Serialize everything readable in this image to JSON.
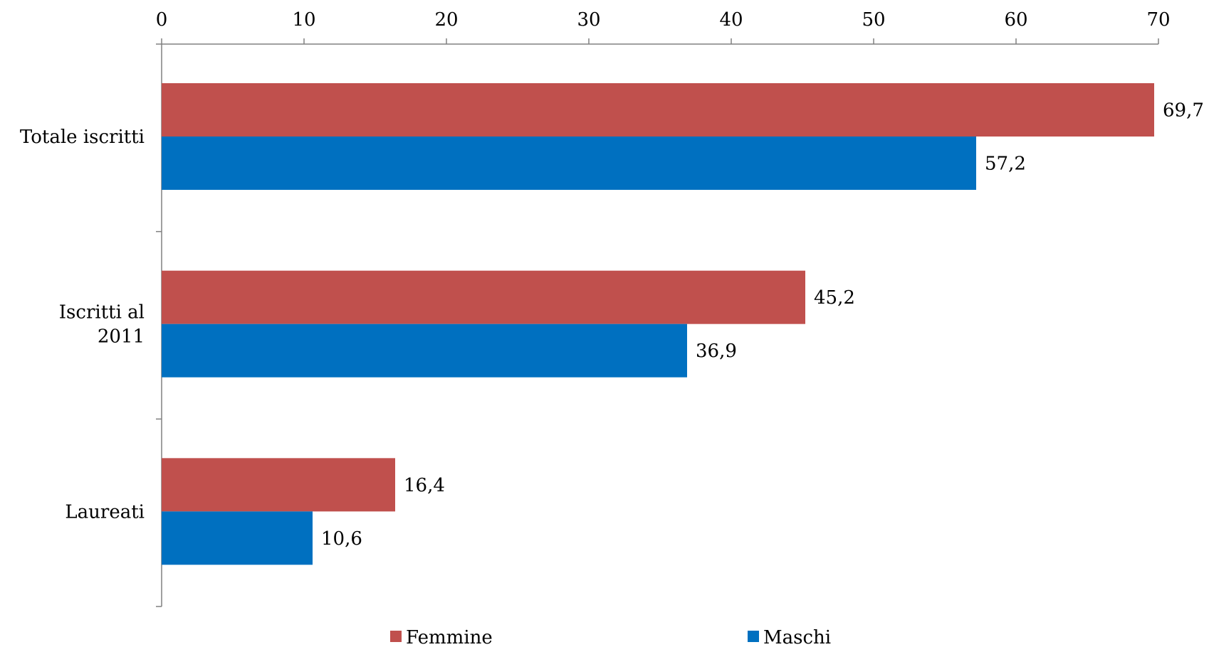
{
  "chart_data": {
    "type": "bar",
    "orientation": "horizontal",
    "categories": [
      [
        "Totale iscritti"
      ],
      [
        "Iscritti al",
        "2011"
      ],
      [
        "Laureati"
      ]
    ],
    "series": [
      {
        "name": "Femmine",
        "color": "#C0504D",
        "values": [
          69.7,
          45.2,
          16.4
        ],
        "labels": [
          "69,7",
          "45,2",
          "16,4"
        ]
      },
      {
        "name": "Maschi",
        "color": "#0070C0",
        "values": [
          57.2,
          36.9,
          10.6
        ],
        "labels": [
          "57,2",
          "36,9",
          "10,6"
        ]
      }
    ],
    "x_ticks": [
      "0",
      "10",
      "20",
      "30",
      "40",
      "50",
      "60",
      "70"
    ],
    "xlim": [
      0,
      70
    ],
    "x_axis_position": "top",
    "grid": false,
    "legend_position": "bottom"
  }
}
